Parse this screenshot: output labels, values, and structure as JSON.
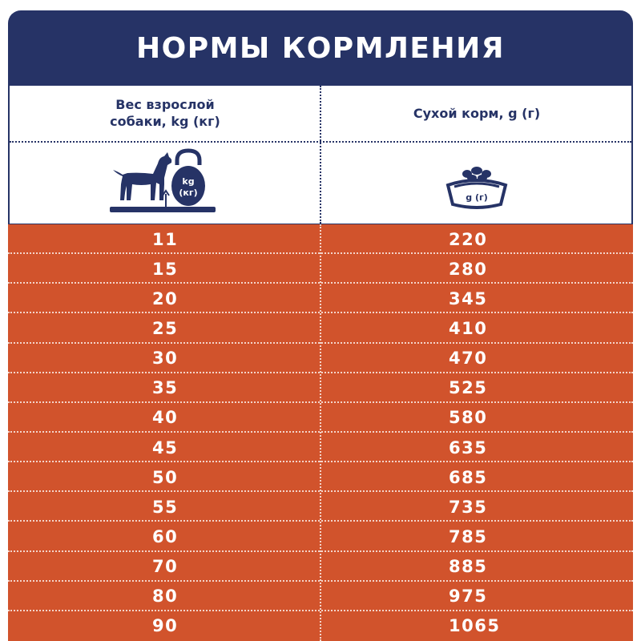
{
  "title": "НОРМЫ КОРМЛЕНИЯ",
  "columns": {
    "weight_header_line1": "Вес взрослой",
    "weight_header_line2": "собаки, kg (кг)",
    "food_header": "Сухой корм, g (г)"
  },
  "icons": {
    "weight_icon": "dog-with-kettlebell-icon",
    "weight_icon_unit1": "kg",
    "weight_icon_unit2": "(кг)",
    "food_icon": "food-bowl-icon",
    "food_icon_unit": "g (г)"
  },
  "colors": {
    "navy": "#263366",
    "orange": "#d1532c",
    "white": "#ffffff"
  },
  "table": {
    "rows": [
      {
        "weight": "11",
        "food": "220"
      },
      {
        "weight": "15",
        "food": "280"
      },
      {
        "weight": "20",
        "food": "345"
      },
      {
        "weight": "25",
        "food": "410"
      },
      {
        "weight": "30",
        "food": "470"
      },
      {
        "weight": "35",
        "food": "525"
      },
      {
        "weight": "40",
        "food": "580"
      },
      {
        "weight": "45",
        "food": "635"
      },
      {
        "weight": "50",
        "food": "685"
      },
      {
        "weight": "55",
        "food": "735"
      },
      {
        "weight": "60",
        "food": "785"
      },
      {
        "weight": "70",
        "food": "885"
      },
      {
        "weight": "80",
        "food": "975"
      },
      {
        "weight": "90",
        "food": "1065"
      }
    ]
  }
}
